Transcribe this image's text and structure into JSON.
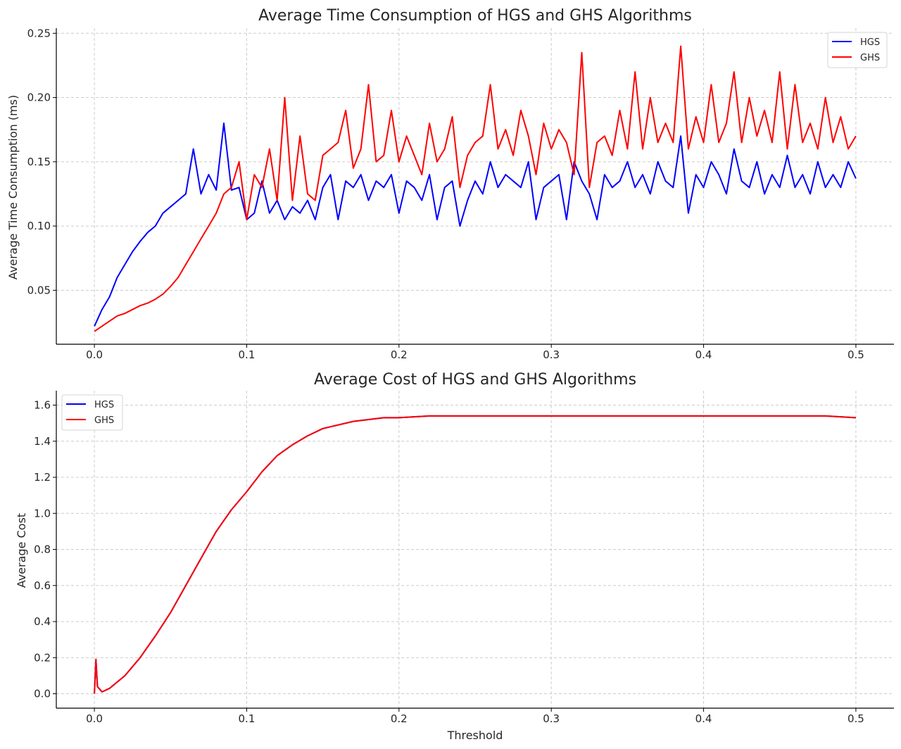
{
  "chart_data": [
    {
      "type": "line",
      "title": "Average Time Consumption of HGS and GHS Algorithms",
      "xlabel": "",
      "ylabel": "Average Time Consumption (ms)",
      "xlim": [
        -0.025,
        0.525
      ],
      "ylim": [
        0.008,
        0.254
      ],
      "xticks": [
        0.0,
        0.1,
        0.2,
        0.3,
        0.4,
        0.5
      ],
      "xtick_labels": [
        "0.0",
        "0.1",
        "0.2",
        "0.3",
        "0.4",
        "0.5"
      ],
      "yticks": [
        0.05,
        0.1,
        0.15,
        0.2,
        0.25
      ],
      "ytick_labels": [
        "0.05",
        "0.10",
        "0.15",
        "0.20",
        "0.25"
      ],
      "grid": true,
      "legend_position": "top-right",
      "series": [
        {
          "name": "HGS",
          "color": "#0000ff",
          "x": [
            0.0,
            0.005,
            0.01,
            0.015,
            0.02,
            0.025,
            0.03,
            0.035,
            0.04,
            0.045,
            0.05,
            0.055,
            0.06,
            0.065,
            0.07,
            0.075,
            0.08,
            0.085,
            0.09,
            0.095,
            0.1,
            0.105,
            0.11,
            0.115,
            0.12,
            0.125,
            0.13,
            0.135,
            0.14,
            0.145,
            0.15,
            0.155,
            0.16,
            0.165,
            0.17,
            0.175,
            0.18,
            0.185,
            0.19,
            0.195,
            0.2,
            0.205,
            0.21,
            0.215,
            0.22,
            0.225,
            0.23,
            0.235,
            0.24,
            0.245,
            0.25,
            0.255,
            0.26,
            0.265,
            0.27,
            0.275,
            0.28,
            0.285,
            0.29,
            0.295,
            0.3,
            0.305,
            0.31,
            0.315,
            0.32,
            0.325,
            0.33,
            0.335,
            0.34,
            0.345,
            0.35,
            0.355,
            0.36,
            0.365,
            0.37,
            0.375,
            0.38,
            0.385,
            0.39,
            0.395,
            0.4,
            0.405,
            0.41,
            0.415,
            0.42,
            0.425,
            0.43,
            0.435,
            0.44,
            0.445,
            0.45,
            0.455,
            0.46,
            0.465,
            0.47,
            0.475,
            0.48,
            0.485,
            0.49,
            0.495,
            0.5
          ],
          "y": [
            0.022,
            0.035,
            0.045,
            0.06,
            0.07,
            0.08,
            0.088,
            0.095,
            0.1,
            0.11,
            0.115,
            0.12,
            0.125,
            0.16,
            0.125,
            0.14,
            0.128,
            0.18,
            0.128,
            0.13,
            0.105,
            0.11,
            0.135,
            0.11,
            0.12,
            0.105,
            0.115,
            0.11,
            0.12,
            0.105,
            0.13,
            0.14,
            0.105,
            0.135,
            0.13,
            0.14,
            0.12,
            0.135,
            0.13,
            0.14,
            0.11,
            0.135,
            0.13,
            0.12,
            0.14,
            0.105,
            0.13,
            0.135,
            0.1,
            0.12,
            0.135,
            0.125,
            0.15,
            0.13,
            0.14,
            0.135,
            0.13,
            0.15,
            0.105,
            0.13,
            0.135,
            0.14,
            0.105,
            0.15,
            0.135,
            0.125,
            0.105,
            0.14,
            0.13,
            0.135,
            0.15,
            0.13,
            0.14,
            0.125,
            0.15,
            0.135,
            0.13,
            0.17,
            0.11,
            0.14,
            0.13,
            0.15,
            0.14,
            0.125,
            0.16,
            0.135,
            0.13,
            0.15,
            0.125,
            0.14,
            0.13,
            0.155,
            0.13,
            0.14,
            0.125,
            0.15,
            0.13,
            0.14,
            0.13,
            0.15,
            0.137
          ]
        },
        {
          "name": "GHS",
          "color": "#ff0000",
          "x": [
            0.0,
            0.005,
            0.01,
            0.015,
            0.02,
            0.025,
            0.03,
            0.035,
            0.04,
            0.045,
            0.05,
            0.055,
            0.06,
            0.065,
            0.07,
            0.075,
            0.08,
            0.085,
            0.09,
            0.095,
            0.1,
            0.105,
            0.11,
            0.115,
            0.12,
            0.125,
            0.13,
            0.135,
            0.14,
            0.145,
            0.15,
            0.155,
            0.16,
            0.165,
            0.17,
            0.175,
            0.18,
            0.185,
            0.19,
            0.195,
            0.2,
            0.205,
            0.21,
            0.215,
            0.22,
            0.225,
            0.23,
            0.235,
            0.24,
            0.245,
            0.25,
            0.255,
            0.26,
            0.265,
            0.27,
            0.275,
            0.28,
            0.285,
            0.29,
            0.295,
            0.3,
            0.305,
            0.31,
            0.315,
            0.32,
            0.325,
            0.33,
            0.335,
            0.34,
            0.345,
            0.35,
            0.355,
            0.36,
            0.365,
            0.37,
            0.375,
            0.38,
            0.385,
            0.39,
            0.395,
            0.4,
            0.405,
            0.41,
            0.415,
            0.42,
            0.425,
            0.43,
            0.435,
            0.44,
            0.445,
            0.45,
            0.455,
            0.46,
            0.465,
            0.47,
            0.475,
            0.48,
            0.485,
            0.49,
            0.495,
            0.5
          ],
          "y": [
            0.018,
            0.022,
            0.026,
            0.03,
            0.032,
            0.035,
            0.038,
            0.04,
            0.043,
            0.047,
            0.053,
            0.06,
            0.07,
            0.08,
            0.09,
            0.1,
            0.11,
            0.125,
            0.13,
            0.15,
            0.105,
            0.14,
            0.13,
            0.16,
            0.12,
            0.2,
            0.12,
            0.17,
            0.125,
            0.12,
            0.155,
            0.16,
            0.165,
            0.19,
            0.145,
            0.16,
            0.21,
            0.15,
            0.155,
            0.19,
            0.15,
            0.17,
            0.155,
            0.14,
            0.18,
            0.15,
            0.16,
            0.185,
            0.13,
            0.155,
            0.165,
            0.17,
            0.21,
            0.16,
            0.175,
            0.155,
            0.19,
            0.17,
            0.14,
            0.18,
            0.16,
            0.175,
            0.165,
            0.14,
            0.235,
            0.13,
            0.165,
            0.17,
            0.155,
            0.19,
            0.16,
            0.22,
            0.16,
            0.2,
            0.165,
            0.18,
            0.165,
            0.24,
            0.16,
            0.185,
            0.165,
            0.21,
            0.165,
            0.18,
            0.22,
            0.165,
            0.2,
            0.17,
            0.19,
            0.165,
            0.22,
            0.16,
            0.21,
            0.165,
            0.18,
            0.16,
            0.2,
            0.165,
            0.185,
            0.16,
            0.17
          ]
        }
      ]
    },
    {
      "type": "line",
      "title": "Average Cost of HGS and GHS Algorithms",
      "xlabel": "Threshold",
      "ylabel": "Average Cost",
      "xlim": [
        -0.025,
        0.525
      ],
      "ylim": [
        -0.08,
        1.68
      ],
      "xticks": [
        0.0,
        0.1,
        0.2,
        0.3,
        0.4,
        0.5
      ],
      "xtick_labels": [
        "0.0",
        "0.1",
        "0.2",
        "0.3",
        "0.4",
        "0.5"
      ],
      "yticks": [
        0.0,
        0.2,
        0.4,
        0.6,
        0.8,
        1.0,
        1.2,
        1.4,
        1.6
      ],
      "ytick_labels": [
        "0.0",
        "0.2",
        "0.4",
        "0.6",
        "0.8",
        "1.0",
        "1.2",
        "1.4",
        "1.6"
      ],
      "grid": true,
      "legend_position": "top-left",
      "series": [
        {
          "name": "HGS",
          "color": "#0000ff",
          "x": [
            0.0,
            0.001,
            0.002,
            0.005,
            0.01,
            0.02,
            0.03,
            0.04,
            0.05,
            0.06,
            0.07,
            0.08,
            0.09,
            0.1,
            0.11,
            0.12,
            0.13,
            0.14,
            0.15,
            0.16,
            0.17,
            0.18,
            0.19,
            0.2,
            0.22,
            0.24,
            0.26,
            0.28,
            0.3,
            0.32,
            0.34,
            0.36,
            0.38,
            0.4,
            0.42,
            0.44,
            0.46,
            0.48,
            0.5
          ],
          "y": [
            0.0,
            0.19,
            0.04,
            0.01,
            0.03,
            0.1,
            0.2,
            0.32,
            0.45,
            0.6,
            0.75,
            0.9,
            1.02,
            1.12,
            1.23,
            1.32,
            1.38,
            1.43,
            1.47,
            1.49,
            1.51,
            1.52,
            1.53,
            1.53,
            1.54,
            1.54,
            1.54,
            1.54,
            1.54,
            1.54,
            1.54,
            1.54,
            1.54,
            1.54,
            1.54,
            1.54,
            1.54,
            1.54,
            1.53
          ]
        },
        {
          "name": "GHS",
          "color": "#ff0000",
          "x": [
            0.0,
            0.001,
            0.002,
            0.005,
            0.01,
            0.02,
            0.03,
            0.04,
            0.05,
            0.06,
            0.07,
            0.08,
            0.09,
            0.1,
            0.11,
            0.12,
            0.13,
            0.14,
            0.15,
            0.16,
            0.17,
            0.18,
            0.19,
            0.2,
            0.22,
            0.24,
            0.26,
            0.28,
            0.3,
            0.32,
            0.34,
            0.36,
            0.38,
            0.4,
            0.42,
            0.44,
            0.46,
            0.48,
            0.5
          ],
          "y": [
            0.0,
            0.19,
            0.04,
            0.01,
            0.03,
            0.1,
            0.2,
            0.32,
            0.45,
            0.6,
            0.75,
            0.9,
            1.02,
            1.12,
            1.23,
            1.32,
            1.38,
            1.43,
            1.47,
            1.49,
            1.51,
            1.52,
            1.53,
            1.53,
            1.54,
            1.54,
            1.54,
            1.54,
            1.54,
            1.54,
            1.54,
            1.54,
            1.54,
            1.54,
            1.54,
            1.54,
            1.54,
            1.54,
            1.53
          ]
        }
      ]
    }
  ]
}
